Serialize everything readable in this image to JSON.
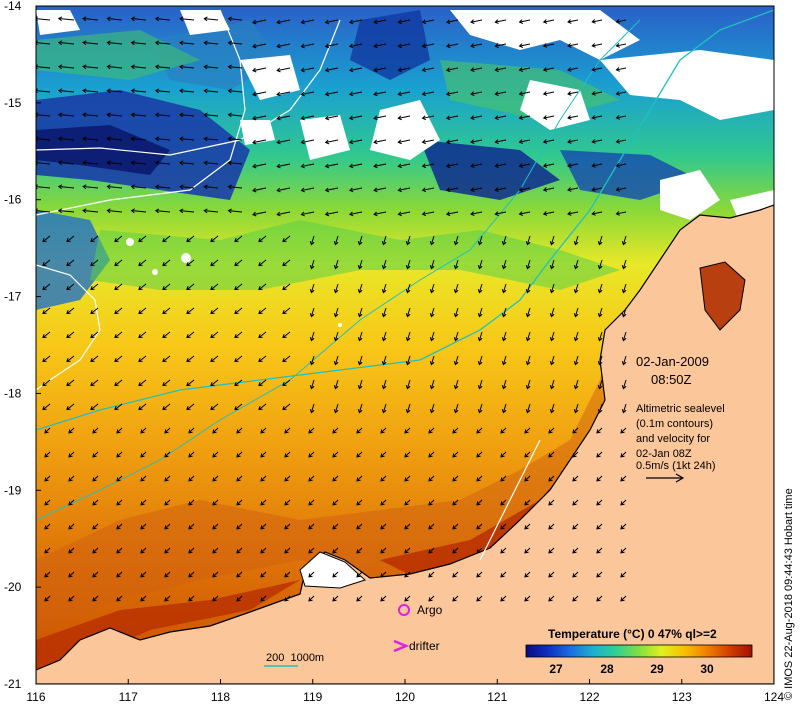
{
  "map": {
    "lon_range": [
      116,
      124
    ],
    "lat_range": [
      -21,
      -14
    ],
    "x_ticks": [
      "116",
      "117",
      "118",
      "119",
      "120",
      "121",
      "122",
      "123",
      "124"
    ],
    "y_ticks": [
      "-14",
      "-15",
      "-16",
      "-17",
      "-18",
      "-19",
      "-20",
      "-21"
    ]
  },
  "annotations": {
    "date": "02-Jan-2009",
    "time": "08:50Z",
    "altimetry_lines": [
      "Altimetric sealevel",
      "(0.1m contours)",
      "and velocity for",
      "02-Jan 08Z",
      "0.5m/s (1kt 24h)"
    ],
    "copyright": "© IMOS 22-Aug-2018 09:44:43 Hobart time"
  },
  "legend": {
    "argo_label": "Argo",
    "drifter_label": "drifter",
    "depth_label": "200  1000m",
    "argo_color": "#e020e0",
    "drifter_color": "#e020e0",
    "depth_color": "#20c0c0"
  },
  "colorbar": {
    "title": "Temperature (°C) 0 47% ql>=2",
    "ticks": [
      "27",
      "28",
      "29",
      "30"
    ],
    "colors": [
      "#0a0a80",
      "#1030c0",
      "#1a70e0",
      "#20b0d0",
      "#30d090",
      "#80e040",
      "#e0f020",
      "#f8c000",
      "#f08000",
      "#d04000",
      "#a01000"
    ]
  },
  "colors": {
    "land": "#fbc79a",
    "coast": "#000000",
    "contour": "#ffffff",
    "isobath": "#20c0c0"
  }
}
